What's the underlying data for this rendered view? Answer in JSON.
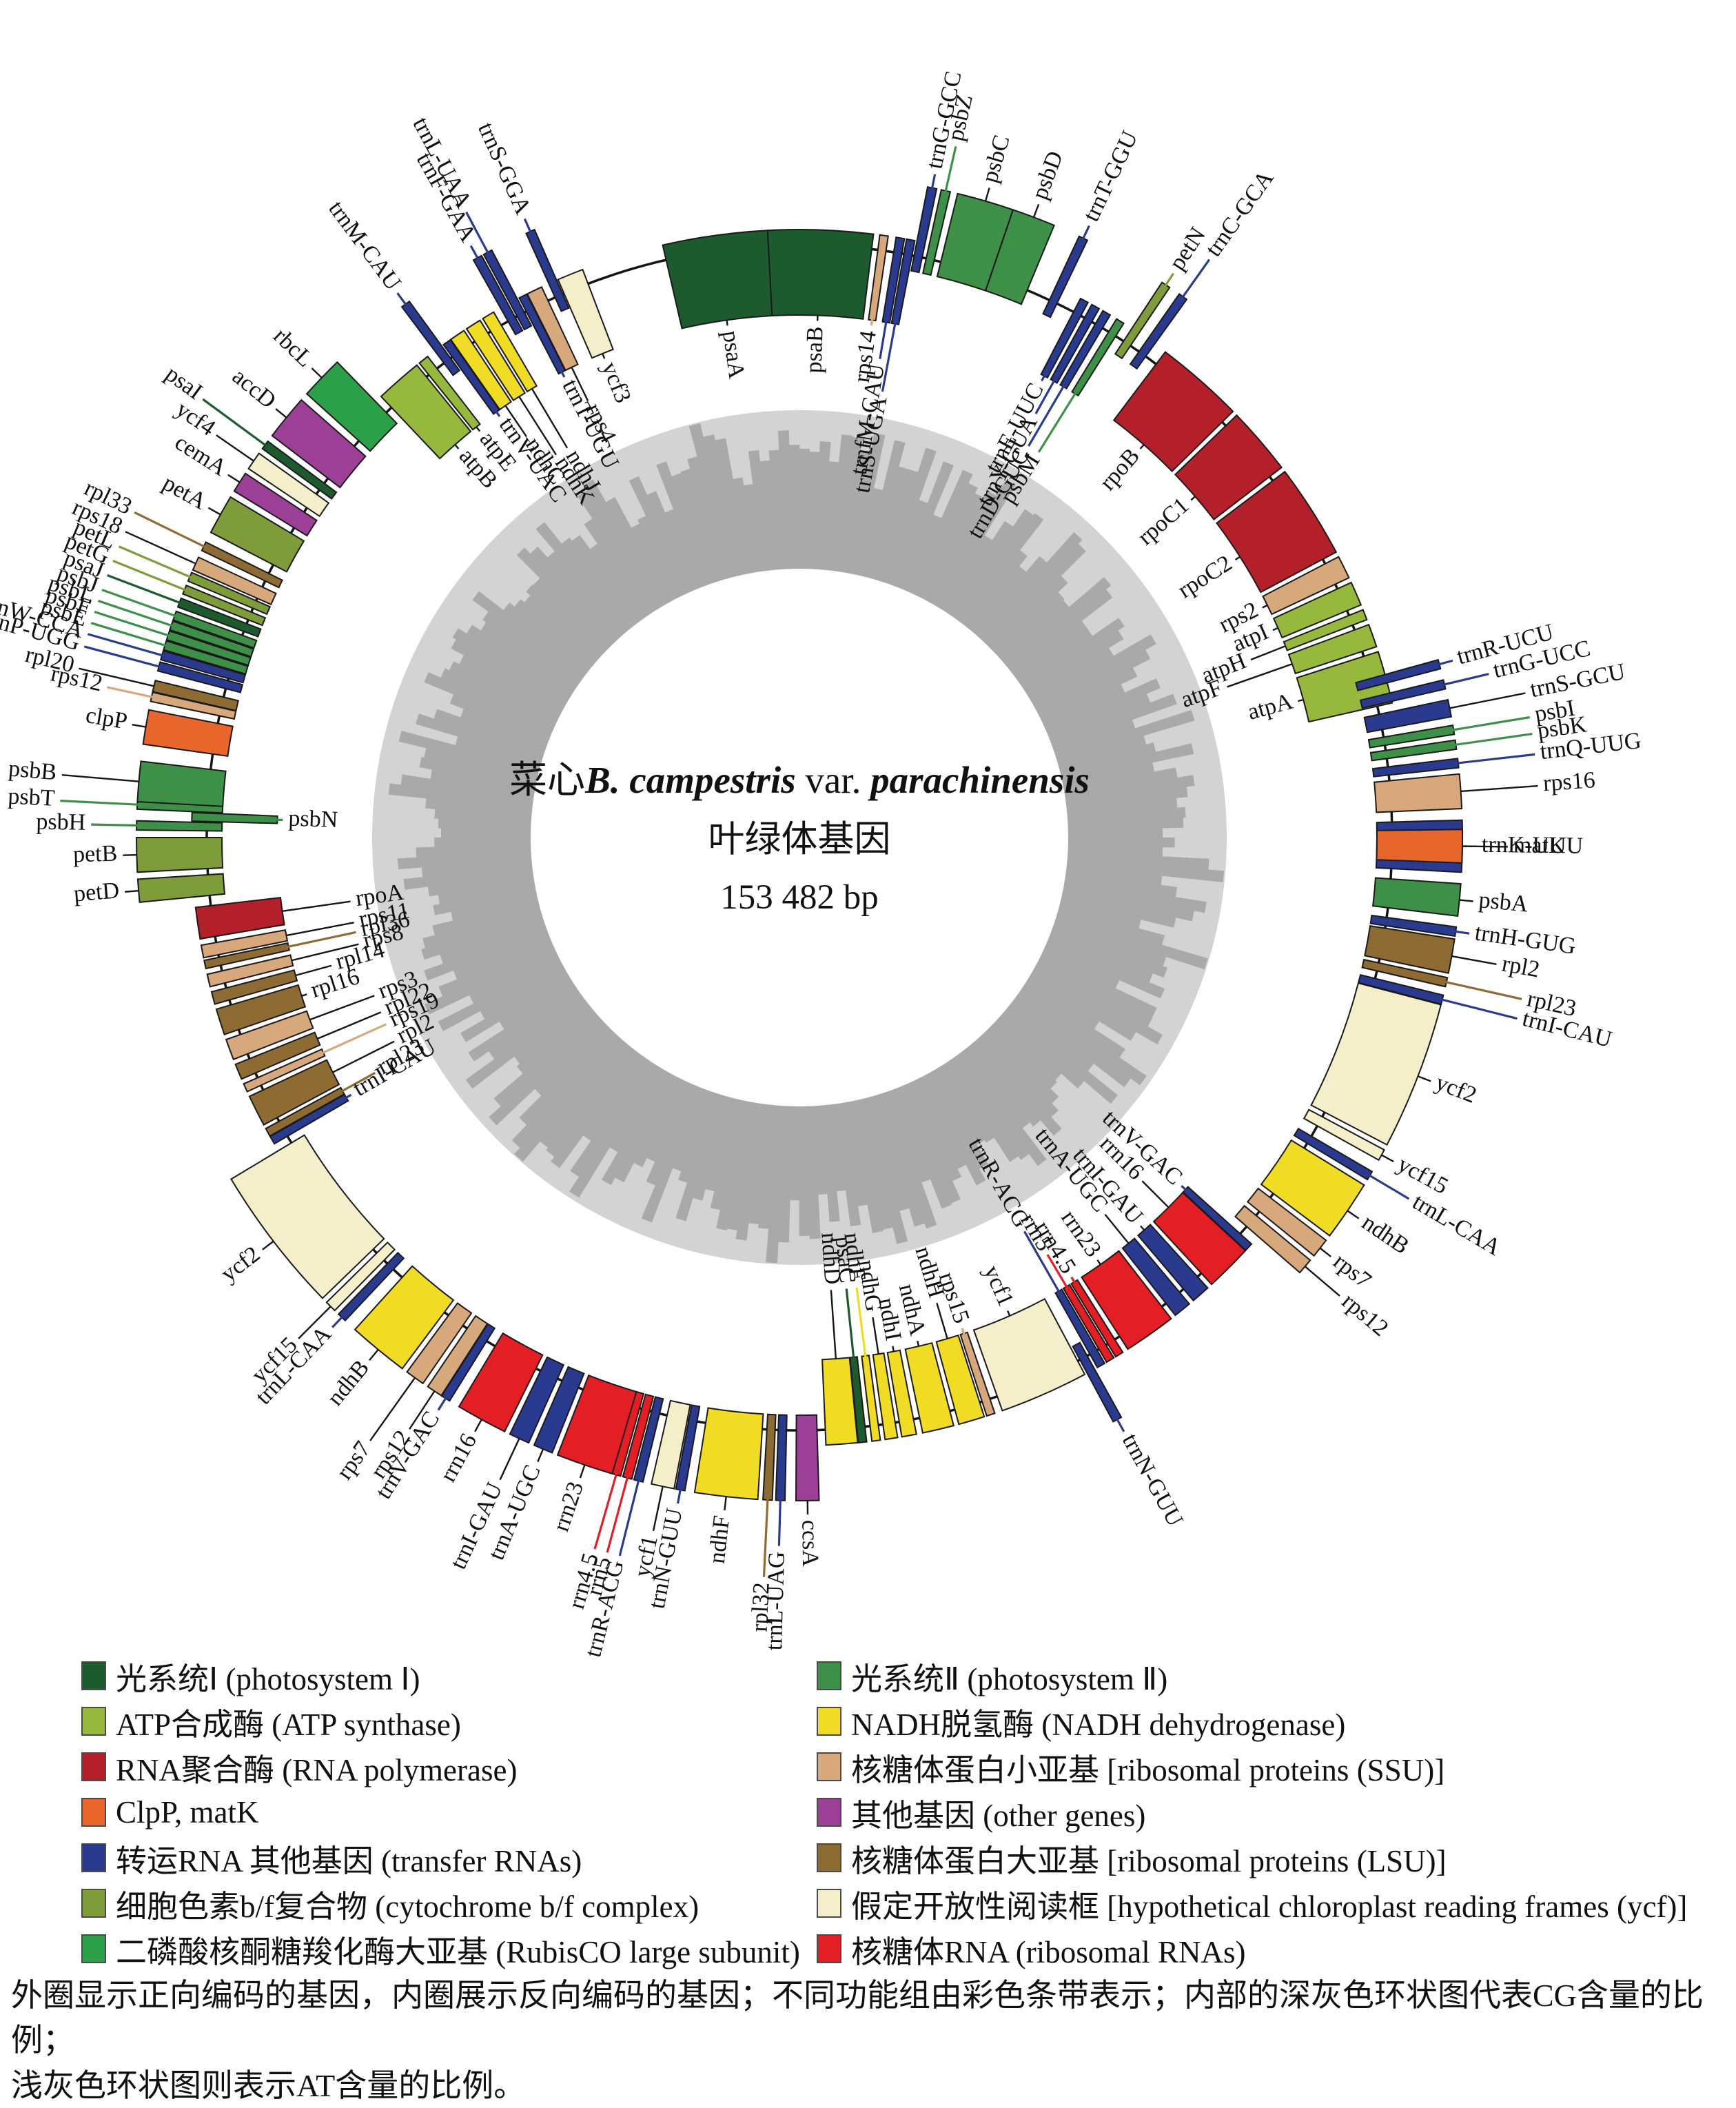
{
  "center": {
    "name_zh": "菜心",
    "species": "B. campestris",
    "var_label": " var. ",
    "subspecies": "parachinensis",
    "line2": "叶绿体基因",
    "size": "153 482 bp"
  },
  "categories": {
    "ps1": {
      "color": "#1d5b2e",
      "label_zh": "光系统Ⅰ",
      "label_en": "photosystem Ⅰ"
    },
    "ps2": {
      "color": "#3e9049",
      "label_zh": "光系统Ⅱ",
      "label_en": "photosystem Ⅱ"
    },
    "atp": {
      "color": "#96b83c",
      "label_zh": "ATP合成酶",
      "label_en": "ATP synthase"
    },
    "nadh": {
      "color": "#f0dc25",
      "label_zh": "NADH脱氢酶",
      "label_en": "NADH dehydrogenase"
    },
    "rnapol": {
      "color": "#b3202a",
      "label_zh": "RNA聚合酶",
      "label_en": "RNA polymerase"
    },
    "ssu": {
      "color": "#d8a87d",
      "label_zh": "核糖体蛋白小亚基",
      "label_en": "ribosomal proteins (SSU)"
    },
    "clpp": {
      "color": "#e8652c",
      "label_zh": "ClpP, matK",
      "label_en": ""
    },
    "other": {
      "color": "#9c3f97",
      "label_zh": "其他基因",
      "label_en": "other genes"
    },
    "trna": {
      "color": "#2a3a8e",
      "label_zh": "转运RNA 其他基因",
      "label_en": "transfer RNAs"
    },
    "lsu": {
      "color": "#8f6b34",
      "label_zh": "核糖体蛋白大亚基",
      "label_en": "ribosomal proteins (LSU)"
    },
    "cytbf": {
      "color": "#7f9c3b",
      "label_zh": "细胞色素b/f复合物",
      "label_en": "cytochrome b/f complex"
    },
    "ycf": {
      "color": "#f4efca",
      "label_zh": "假定开放性阅读框",
      "label_en": "hypothetical chloroplast reading frames (ycf)"
    },
    "rubisco": {
      "color": "#2ba048",
      "label_zh": "二磷酸核酮糖羧化酶大亚基",
      "label_en": "RubisCO large subunit"
    },
    "rrna": {
      "color": "#e31e24",
      "label_zh": "核糖体RNA",
      "label_en": "ribosomal RNAs"
    }
  },
  "legend": {
    "left": [
      {
        "cat": "ps1",
        "text": "光系统Ⅰ (photosystem Ⅰ)"
      },
      {
        "cat": "atp",
        "text": "ATP合成酶 (ATP synthase)"
      },
      {
        "cat": "rnapol",
        "text": "RNA聚合酶 (RNA polymerase)"
      },
      {
        "cat": "clpp",
        "text": "ClpP, matK"
      },
      {
        "cat": "trna",
        "text": "转运RNA 其他基因 (transfer RNAs)"
      },
      {
        "cat": "cytbf",
        "text": "细胞色素b/f复合物 (cytochrome b/f complex)"
      },
      {
        "cat": "rubisco",
        "text": "二磷酸核酮糖羧化酶大亚基 (RubisCO large subunit)"
      }
    ],
    "right": [
      {
        "cat": "ps2",
        "text": "光系统Ⅱ (photosystem Ⅱ)"
      },
      {
        "cat": "nadh",
        "text": "NADH脱氢酶 (NADH dehydrogenase)"
      },
      {
        "cat": "ssu",
        "text": "核糖体蛋白小亚基 [ribosomal proteins (SSU)]"
      },
      {
        "cat": "other",
        "text": "其他基因 (other genes)"
      },
      {
        "cat": "lsu",
        "text": "核糖体蛋白大亚基 [ribosomal proteins (LSU)]"
      },
      {
        "cat": "ycf",
        "text": "假定开放性阅读框 [hypothetical chloroplast reading frames (ycf)]"
      },
      {
        "cat": "rrna",
        "text": "核糖体RNA (ribosomal RNAs)"
      }
    ]
  },
  "caption": {
    "line1": "外圈显示正向编码的基因，内圈展示反向编码的基因；不同功能组由彩色条带表示；内部的深灰色环状图代表CG含量的比例；",
    "line2": "浅灰色环状图则表示AT含量的比例。"
  },
  "chart_data": {
    "type": "circular-genome-map",
    "genome_size_bp": 153482,
    "rings": {
      "outer_strand": "forward genes",
      "inner_strand": "reverse genes",
      "dark_gray": "CG content",
      "light_gray": "AT content"
    },
    "genes": [
      {
        "n": "psaA",
        "a0": 347,
        "a1": 357,
        "s": "I",
        "c": "ps1"
      },
      {
        "n": "psaB",
        "a0": 357,
        "a1": 367,
        "s": "I",
        "c": "ps1"
      },
      {
        "n": "rps14",
        "a0": 7.6,
        "a1": 8.4,
        "s": "I",
        "c": "ssu"
      },
      {
        "n": "trnfM-CAU",
        "a0": 9.2,
        "s": "I",
        "c": "trna"
      },
      {
        "n": "trnS-UGA",
        "a0": 10.2,
        "s": "I",
        "c": "trna"
      },
      {
        "n": "trnG-GCC",
        "a0": 11.2,
        "s": "O",
        "c": "trna"
      },
      {
        "n": "psbZ",
        "a0": 12.4,
        "s": "O",
        "c": "ps2"
      },
      {
        "n": "psbC",
        "a0": 13.8,
        "a1": 18.8,
        "s": "O",
        "c": "ps2"
      },
      {
        "n": "psbD",
        "a0": 18.8,
        "a1": 22.6,
        "s": "O",
        "c": "ps2"
      },
      {
        "n": "trnT-GGU",
        "a0": 25,
        "s": "O",
        "c": "trna"
      },
      {
        "n": "trnE-UUC",
        "a0": 27.6,
        "s": "I",
        "c": "trna"
      },
      {
        "n": "trnY-GUA",
        "a0": 28.8,
        "s": "I",
        "c": "trna"
      },
      {
        "n": "trnD-GUC",
        "a0": 30,
        "s": "I",
        "c": "trna"
      },
      {
        "n": "psbM",
        "a0": 31.5,
        "s": "I",
        "c": "ps2"
      },
      {
        "n": "petN",
        "a0": 33.2,
        "s": "O",
        "c": "cytbf"
      },
      {
        "n": "trnC-GCA",
        "a0": 35,
        "s": "O",
        "c": "trna"
      },
      {
        "n": "rpoB",
        "a0": 37,
        "a1": 45.5,
        "s": "I",
        "c": "rnapol"
      },
      {
        "n": "rpoC1",
        "a0": 46,
        "a1": 52.5,
        "s": "I",
        "c": "rnapol"
      },
      {
        "n": "rpoC2",
        "a0": 53,
        "a1": 62,
        "s": "I",
        "c": "rnapol"
      },
      {
        "n": "rps2",
        "a0": 62.5,
        "a1": 64.7,
        "s": "I",
        "c": "ssu"
      },
      {
        "n": "atpI",
        "a0": 65.2,
        "a1": 67.5,
        "s": "I",
        "c": "atp"
      },
      {
        "n": "atpH",
        "a0": 68,
        "a1": 69,
        "s": "I",
        "c": "atp"
      },
      {
        "n": "atpF",
        "a0": 69.5,
        "a1": 71.7,
        "s": "I",
        "c": "atp"
      },
      {
        "n": "atpA",
        "a0": 72.2,
        "a1": 77.2,
        "s": "I",
        "c": "atp"
      },
      {
        "n": "trnR-UCU",
        "a0": 74.5,
        "s": "O",
        "c": "trna"
      },
      {
        "n": "trnG-UCC",
        "a0": 76.3,
        "s": "O",
        "c": "trna"
      },
      {
        "n": "trnS-GCU",
        "a0": 78,
        "a1": 79.5,
        "s": "O",
        "c": "trna"
      },
      {
        "n": "psbI",
        "a0": 80.3,
        "s": "O",
        "c": "ps2"
      },
      {
        "n": "psbK",
        "a0": 81.6,
        "s": "O",
        "c": "ps2"
      },
      {
        "n": "trnQ-UUG",
        "a0": 83.2,
        "s": "O",
        "c": "trna"
      },
      {
        "n": "rps16",
        "a0": 84.5,
        "a1": 87.5,
        "s": "O",
        "c": "ssu"
      },
      {
        "n": "trnK-UUU",
        "a0": 88.5,
        "a1": 93,
        "s": "O",
        "c": "trna"
      },
      {
        "n": "matK",
        "a0": 89.3,
        "a1": 92.2,
        "s": "O",
        "c": "clpp"
      },
      {
        "n": "psbA",
        "a0": 94,
        "a1": 96.8,
        "s": "O",
        "c": "ps2"
      },
      {
        "n": "trnH-GUG",
        "a0": 97.8,
        "s": "O",
        "c": "trna"
      },
      {
        "n": "rpl2",
        "a0": 98.8,
        "a1": 101.8,
        "s": "O",
        "c": "lsu"
      },
      {
        "n": "rpl23",
        "a0": 102.2,
        "a1": 103,
        "s": "O",
        "c": "lsu"
      },
      {
        "n": "trnI-CAU",
        "a0": 103.8,
        "s": "O",
        "c": "trna"
      },
      {
        "n": "ycf2",
        "a0": 104.6,
        "a1": 117.6,
        "s": "O",
        "c": "ycf"
      },
      {
        "n": "ycf15",
        "a0": 118.1,
        "a1": 119.1,
        "s": "O",
        "c": "ycf"
      },
      {
        "n": "trnL-CAA",
        "a0": 120.3,
        "s": "O",
        "c": "trna"
      },
      {
        "n": "ndhB",
        "a0": 121.6,
        "a1": 126.9,
        "s": "O",
        "c": "nadh"
      },
      {
        "n": "rps7",
        "a0": 127.4,
        "a1": 129.1,
        "s": "O",
        "c": "ssu"
      },
      {
        "n": "rps12",
        "a0": 129.6,
        "a1": 131,
        "s": "O",
        "c": "ssu"
      },
      {
        "n": "trnV-GAC",
        "a0": 132,
        "s": "I",
        "c": "trna"
      },
      {
        "n": "rrn16",
        "a0": 132.8,
        "a1": 137.3,
        "s": "I",
        "c": "rrna"
      },
      {
        "n": "trnI-GAU",
        "a0": 137.8,
        "a1": 139.6,
        "s": "I",
        "c": "trna"
      },
      {
        "n": "trnA-UGC",
        "a0": 140.1,
        "a1": 141.8,
        "s": "I",
        "c": "trna"
      },
      {
        "n": "rrn23",
        "a0": 142.3,
        "a1": 147.3,
        "s": "I",
        "c": "rrna"
      },
      {
        "n": "rrn4.5",
        "a0": 147.9,
        "s": "I",
        "c": "rrna"
      },
      {
        "n": "rrn5",
        "a0": 148.9,
        "s": "I",
        "c": "rrna"
      },
      {
        "n": "trnR-ACG",
        "a0": 149.9,
        "s": "I",
        "c": "trna"
      },
      {
        "n": "trnN-GUU",
        "a0": 151,
        "s": "O",
        "c": "trna"
      },
      {
        "n": "ycf1",
        "a0": 152,
        "a1": 160.5,
        "s": "I",
        "c": "ycf"
      },
      {
        "n": "rps15",
        "a0": 161.3,
        "s": "I",
        "c": "ssu"
      },
      {
        "n": "ndhH",
        "a0": 162.3,
        "a1": 164.8,
        "s": "I",
        "c": "nadh"
      },
      {
        "n": "ndhA",
        "a0": 165.3,
        "a1": 168.3,
        "s": "I",
        "c": "nadh"
      },
      {
        "n": "ndhI",
        "a0": 168.9,
        "a1": 170.3,
        "s": "I",
        "c": "nadh"
      },
      {
        "n": "ndhG",
        "a0": 170.7,
        "a1": 171.9,
        "s": "I",
        "c": "nadh"
      },
      {
        "n": "ndhE",
        "a0": 172.3,
        "a1": 173.2,
        "s": "I",
        "c": "nadh"
      },
      {
        "n": "psaC",
        "a0": 173.7,
        "s": "I",
        "c": "ps1"
      },
      {
        "n": "ndhD",
        "a0": 174.5,
        "a1": 177.5,
        "s": "I",
        "c": "nadh"
      },
      {
        "n": "ccsA",
        "a0": 178.3,
        "a1": 180.3,
        "s": "O",
        "c": "other"
      },
      {
        "n": "trnL-UAG",
        "a0": 181.3,
        "s": "O",
        "c": "trna"
      },
      {
        "n": "rpl32",
        "a0": 182.4,
        "s": "O",
        "c": "lsu"
      },
      {
        "n": "ndhF",
        "a0": 183.6,
        "a1": 189.1,
        "s": "O",
        "c": "nadh"
      },
      {
        "n": "trnN-GUU",
        "a0": 190,
        "s": "O",
        "c": "trna"
      },
      {
        "n": "ycf1",
        "a0": 190.9,
        "a1": 192.9,
        "s": "O",
        "c": "ycf"
      },
      {
        "n": "trnR-ACG",
        "a0": 193.7,
        "s": "O",
        "c": "trna"
      },
      {
        "n": "rrn5",
        "a0": 194.7,
        "s": "O",
        "c": "rrna"
      },
      {
        "n": "rrn4.5",
        "a0": 195.7,
        "s": "O",
        "c": "rrna"
      },
      {
        "n": "rrn23",
        "a0": 196.4,
        "a1": 201.4,
        "s": "O",
        "c": "rrna"
      },
      {
        "n": "trnA-UGC",
        "a0": 201.9,
        "a1": 203.6,
        "s": "O",
        "c": "trna"
      },
      {
        "n": "trnI-GAU",
        "a0": 204.1,
        "a1": 205.9,
        "s": "O",
        "c": "trna"
      },
      {
        "n": "rrn16",
        "a0": 206.4,
        "a1": 210.9,
        "s": "O",
        "c": "rrna"
      },
      {
        "n": "trnV-GAC",
        "a0": 211.9,
        "s": "O",
        "c": "trna"
      },
      {
        "n": "rps12",
        "a0": 212.7,
        "a1": 214.1,
        "s": "O",
        "c": "ssu"
      },
      {
        "n": "rps7",
        "a0": 214.6,
        "a1": 216.3,
        "s": "O",
        "c": "ssu"
      },
      {
        "n": "ndhB",
        "a0": 216.8,
        "a1": 222.1,
        "s": "O",
        "c": "nadh"
      },
      {
        "n": "trnL-CAA",
        "a0": 223.3,
        "s": "O",
        "c": "trna"
      },
      {
        "n": "ycf15",
        "a0": 224.5,
        "a1": 225.5,
        "s": "O",
        "c": "ycf"
      },
      {
        "n": "ycf2",
        "a0": 226,
        "a1": 239,
        "s": "O",
        "c": "ycf"
      },
      {
        "n": "trnI-CAU",
        "a0": 239.8,
        "s": "I",
        "c": "trna"
      },
      {
        "n": "rpl23",
        "a0": 240.6,
        "a1": 241.4,
        "s": "I",
        "c": "lsu"
      },
      {
        "n": "rpl2",
        "a0": 241.8,
        "a1": 244.8,
        "s": "I",
        "c": "lsu"
      },
      {
        "n": "rps19",
        "a0": 245.3,
        "a1": 246.1,
        "s": "I",
        "c": "ssu"
      },
      {
        "n": "rpl22",
        "a0": 246.6,
        "a1": 248.1,
        "s": "I",
        "c": "lsu"
      },
      {
        "n": "rps3",
        "a0": 248.6,
        "a1": 250.6,
        "s": "I",
        "c": "ssu"
      },
      {
        "n": "rpl16",
        "a0": 251.1,
        "a1": 253.6,
        "s": "I",
        "c": "lsu"
      },
      {
        "n": "rpl14",
        "a0": 254.1,
        "a1": 255.3,
        "s": "I",
        "c": "lsu"
      },
      {
        "n": "rps8",
        "a0": 255.8,
        "a1": 257,
        "s": "I",
        "c": "ssu"
      },
      {
        "n": "rpl36",
        "a0": 257.6,
        "s": "I",
        "c": "lsu"
      },
      {
        "n": "rps11",
        "a0": 258.6,
        "a1": 259.8,
        "s": "I",
        "c": "ssu"
      },
      {
        "n": "rpoA",
        "a0": 260.4,
        "a1": 263.4,
        "s": "I",
        "c": "rnapol"
      },
      {
        "n": "petD",
        "a0": 264.4,
        "a1": 266.4,
        "s": "O",
        "c": "cytbf"
      },
      {
        "n": "petB",
        "a0": 267,
        "a1": 270,
        "s": "O",
        "c": "cytbf"
      },
      {
        "n": "psbH",
        "a0": 270.7,
        "s": "O",
        "c": "ps2"
      },
      {
        "n": "psbN",
        "a0": 271.6,
        "s": "I",
        "c": "ps2"
      },
      {
        "n": "psbT",
        "a0": 272.5,
        "s": "O",
        "c": "ps2"
      },
      {
        "n": "psbB",
        "a0": 273.1,
        "a1": 276.6,
        "s": "O",
        "c": "ps2"
      },
      {
        "n": "clpP",
        "a0": 278.1,
        "a1": 281.1,
        "s": "O",
        "c": "clpp"
      },
      {
        "n": "rps12",
        "a0": 281.9,
        "s": "O",
        "c": "ssu"
      },
      {
        "n": "rpl20",
        "a0": 282.7,
        "a1": 283.7,
        "s": "O",
        "c": "lsu"
      },
      {
        "n": "trnP-UGG",
        "a0": 284.6,
        "s": "O",
        "c": "trna"
      },
      {
        "n": "trnW-CCA",
        "a0": 285.6,
        "s": "O",
        "c": "trna"
      },
      {
        "n": "psbE",
        "a0": 286.5,
        "s": "O",
        "c": "ps2"
      },
      {
        "n": "psbF",
        "a0": 287.4,
        "s": "O",
        "c": "ps2"
      },
      {
        "n": "psbL",
        "a0": 288.3,
        "s": "O",
        "c": "ps2"
      },
      {
        "n": "psbJ",
        "a0": 289.2,
        "s": "O",
        "c": "ps2"
      },
      {
        "n": "psaJ",
        "a0": 290.4,
        "s": "O",
        "c": "ps1"
      },
      {
        "n": "petG",
        "a0": 291.6,
        "s": "O",
        "c": "cytbf"
      },
      {
        "n": "petL",
        "a0": 292.8,
        "s": "O",
        "c": "cytbf"
      },
      {
        "n": "rps18",
        "a0": 293.8,
        "a1": 295,
        "s": "O",
        "c": "ssu"
      },
      {
        "n": "rpl33",
        "a0": 295.7,
        "s": "O",
        "c": "lsu"
      },
      {
        "n": "petA",
        "a0": 297.4,
        "a1": 300.9,
        "s": "O",
        "c": "cytbf"
      },
      {
        "n": "cemA",
        "a0": 301.5,
        "a1": 303.3,
        "s": "O",
        "c": "other"
      },
      {
        "n": "ycf4",
        "a0": 303.8,
        "a1": 305.4,
        "s": "O",
        "c": "ycf"
      },
      {
        "n": "psaI",
        "a0": 305.9,
        "a1": 306.7,
        "s": "O",
        "c": "ps1"
      },
      {
        "n": "accD",
        "a0": 307.3,
        "a1": 311.3,
        "s": "O",
        "c": "other"
      },
      {
        "n": "rbcL",
        "a0": 312,
        "a1": 315.8,
        "s": "O",
        "c": "rubisco"
      },
      {
        "n": "atpB",
        "a0": 316.5,
        "a1": 321,
        "s": "I",
        "c": "atp"
      },
      {
        "n": "atpE",
        "a0": 321.3,
        "a1": 322.3,
        "s": "I",
        "c": "atp"
      },
      {
        "n": "trnM-CAU",
        "a0": 323.2,
        "s": "O",
        "c": "trna"
      },
      {
        "n": "trnV-UAC",
        "a0": 324.2,
        "s": "I",
        "c": "trna"
      },
      {
        "n": "ndhC",
        "a0": 325,
        "a1": 326.5,
        "s": "I",
        "c": "nadh"
      },
      {
        "n": "ndhK",
        "a0": 326.8,
        "a1": 328.3,
        "s": "I",
        "c": "nadh"
      },
      {
        "n": "ndhJ",
        "a0": 328.6,
        "a1": 329.8,
        "s": "I",
        "c": "nadh"
      },
      {
        "n": "trnF-GAA",
        "a0": 330.6,
        "s": "O",
        "c": "trna"
      },
      {
        "n": "trnL-UAA",
        "a0": 331.6,
        "s": "O",
        "c": "trna"
      },
      {
        "n": "trnT-UGU",
        "a0": 332.6,
        "s": "I",
        "c": "trna"
      },
      {
        "n": "rps4",
        "a0": 333.4,
        "a1": 334.9,
        "s": "I",
        "c": "ssu"
      },
      {
        "n": "trnS-GGA",
        "a0": 335.7,
        "s": "O",
        "c": "trna"
      },
      {
        "n": "ycf3",
        "a0": 336.6,
        "a1": 339.1,
        "s": "I",
        "c": "ycf"
      }
    ]
  }
}
